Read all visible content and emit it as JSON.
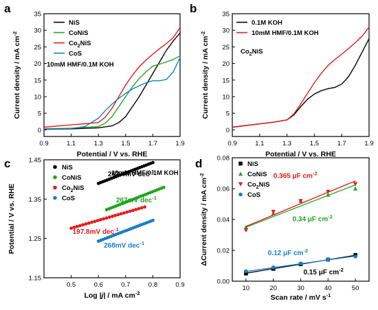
{
  "chart_data": [
    {
      "panel": "a",
      "type": "line",
      "xlabel": "Potential / V vs. RHE",
      "ylabel": "Current density / mA cm",
      "ylabel_sup": "-2",
      "xlim": [
        0.9,
        1.9
      ],
      "ylim": [
        -2,
        35
      ],
      "xticks": [
        "0.9",
        "1.1",
        "1.3",
        "1.5",
        "1.7",
        "1.9"
      ],
      "yticks": [
        "0",
        "5",
        "10",
        "15",
        "20",
        "25",
        "30",
        "35"
      ],
      "note": "10mM HMF/0.1M KOH",
      "legend_position": "top-left",
      "series": [
        {
          "name": "NiS",
          "color": "#000000",
          "x": [
            0.9,
            1.1,
            1.3,
            1.4,
            1.45,
            1.5,
            1.55,
            1.6,
            1.65,
            1.7,
            1.75,
            1.8,
            1.85,
            1.9
          ],
          "y": [
            0.2,
            0.3,
            0.6,
            1.2,
            2.2,
            4.0,
            7.0,
            10.0,
            13.5,
            17.0,
            20.5,
            24.0,
            26.8,
            29.2
          ]
        },
        {
          "name": "CoNiS",
          "color": "#1fa51f",
          "x": [
            0.9,
            1.1,
            1.3,
            1.35,
            1.4,
            1.45,
            1.5,
            1.55,
            1.6,
            1.65,
            1.7,
            1.75,
            1.8,
            1.85,
            1.9
          ],
          "y": [
            0.3,
            0.5,
            1.0,
            2.0,
            4.0,
            7.0,
            10.0,
            13.0,
            15.5,
            17.5,
            19.2,
            19.8,
            20.5,
            21.2,
            22.3
          ]
        },
        {
          "name": "Co2NiS",
          "label_main": "Co",
          "label_sub": "2",
          "label_tail": "NiS",
          "color": "#e8191b",
          "x": [
            0.9,
            1.1,
            1.3,
            1.35,
            1.4,
            1.45,
            1.5,
            1.55,
            1.6,
            1.65,
            1.7,
            1.75,
            1.8,
            1.85,
            1.9
          ],
          "y": [
            0.8,
            1.5,
            2.2,
            3.8,
            6.5,
            10.0,
            13.5,
            16.5,
            19.0,
            21.0,
            22.8,
            24.5,
            26.0,
            27.8,
            30.8
          ]
        },
        {
          "name": "CoS",
          "color": "#1a7cc9",
          "x": [
            0.9,
            1.1,
            1.2,
            1.3,
            1.35,
            1.4,
            1.45,
            1.5,
            1.55,
            1.6,
            1.65,
            1.7,
            1.75,
            1.8,
            1.85,
            1.9
          ],
          "y": [
            0.3,
            0.4,
            1.0,
            3.5,
            5.8,
            7.8,
            9.5,
            11.0,
            12.3,
            13.3,
            14.2,
            14.8,
            14.8,
            15.2,
            17.5,
            21.8
          ]
        }
      ]
    },
    {
      "panel": "b",
      "type": "line",
      "xlabel": "Potential / V vs. RHE",
      "ylabel": "Current density / mA cm",
      "ylabel_sup": "-2",
      "xlim": [
        0.9,
        1.9
      ],
      "ylim": [
        -2,
        35
      ],
      "xticks": [
        "0.9",
        "1.1",
        "1.3",
        "1.5",
        "1.7",
        "1.9"
      ],
      "yticks": [
        "0",
        "5",
        "10",
        "15",
        "20",
        "25",
        "30",
        "35"
      ],
      "note_main": "Co",
      "note_sub": "2",
      "note_tail": "NiS",
      "legend_position": "top-left",
      "series": [
        {
          "name": "0.1M KOH",
          "color": "#000000",
          "x": [
            0.9,
            1.0,
            1.1,
            1.2,
            1.3,
            1.35,
            1.4,
            1.45,
            1.5,
            1.55,
            1.6,
            1.65,
            1.7,
            1.75,
            1.8,
            1.85,
            1.9
          ],
          "y": [
            0.8,
            1.3,
            1.8,
            2.3,
            3.0,
            4.5,
            7.0,
            9.2,
            10.8,
            11.8,
            12.4,
            12.8,
            13.8,
            16.0,
            19.5,
            23.5,
            27.5
          ]
        },
        {
          "name": "10mM HMF/0.1M KOH",
          "color": "#e8191b",
          "x": [
            0.9,
            1.0,
            1.1,
            1.2,
            1.3,
            1.35,
            1.4,
            1.45,
            1.5,
            1.55,
            1.6,
            1.65,
            1.7,
            1.75,
            1.8,
            1.85,
            1.9
          ],
          "y": [
            0.8,
            1.3,
            1.8,
            2.3,
            3.0,
            4.8,
            7.8,
            11.0,
            14.2,
            17.0,
            19.4,
            21.2,
            22.8,
            24.5,
            26.3,
            28.3,
            31.0
          ]
        }
      ]
    },
    {
      "panel": "c",
      "type": "scatter",
      "xlabel": "Log |j| / mA cm",
      "xlabel_main": "Log ",
      "xlabel_j": "|j|",
      "xlabel_tail": " / mA cm",
      "xlabel_sup": "-2",
      "ylabel": "Potential / V vs. RHE",
      "xlim": [
        0.4,
        0.9
      ],
      "ylim": [
        1.15,
        1.45
      ],
      "xticks": [
        "0.5",
        "0.6",
        "0.7",
        "0.8",
        "0.9"
      ],
      "yticks": [
        "1.15",
        "1.25",
        "1.35",
        "1.45"
      ],
      "note": "10mM HMF/0.1M KOH",
      "legend_position": "top-left",
      "series": [
        {
          "name": "NiS",
          "color": "#000000",
          "x_start": 0.6,
          "x_end": 0.8,
          "y_start": 1.39,
          "y_end": 1.443,
          "slope_label": "263.4mV dec",
          "slope_sup": "-1"
        },
        {
          "name": "CoNiS",
          "color": "#1fa51f",
          "x_start": 0.63,
          "x_end": 0.84,
          "y_start": 1.323,
          "y_end": 1.38,
          "slope_label": "267mV dec",
          "slope_sup": "-1"
        },
        {
          "name": "Co2NiS",
          "label_main": "Co",
          "label_sub": "2",
          "label_tail": "NiS",
          "color": "#e8191b",
          "x_start": 0.5,
          "x_end": 0.77,
          "y_start": 1.276,
          "y_end": 1.33,
          "slope_label": "197.8mV dec",
          "slope_sup": "-1"
        },
        {
          "name": "CoS",
          "color": "#1a7cc9",
          "x_start": 0.6,
          "x_end": 0.8,
          "y_start": 1.243,
          "y_end": 1.296,
          "slope_label": "268mV dec",
          "slope_sup": "-1"
        }
      ]
    },
    {
      "panel": "d",
      "type": "scatter",
      "xlabel": "Scan rate / mV s",
      "xlabel_sup": "-1",
      "ylabel": "ΔCurrent density / mA cm",
      "ylabel_sup": "-2",
      "xlim": [
        5,
        55
      ],
      "ylim": [
        0,
        0.08
      ],
      "xticks": [
        "10",
        "20",
        "30",
        "40",
        "50"
      ],
      "yticks": [
        "0.00",
        "0.02",
        "0.04",
        "0.06",
        "0.08"
      ],
      "legend_position": "top-left",
      "series": [
        {
          "name": "NiS",
          "color": "#000000",
          "marker": "square",
          "x": [
            10,
            20,
            30,
            40,
            50
          ],
          "y": [
            0.005,
            0.008,
            0.011,
            0.014,
            0.017
          ],
          "fit": [
            [
              10,
              0.0052
            ],
            [
              50,
              0.0168
            ]
          ],
          "cdl_label": "0.15 μF cm",
          "cdl_sup": "-2"
        },
        {
          "name": "CoNiS",
          "color": "#1fa51f",
          "marker": "triangle-up",
          "x": [
            10,
            20,
            30,
            40,
            50
          ],
          "y": [
            0.035,
            0.044,
            0.052,
            0.056,
            0.06
          ],
          "fit": [
            [
              10,
              0.035
            ],
            [
              50,
              0.0624
            ]
          ],
          "cdl_label": "0.34 μF cm",
          "cdl_sup": "-2"
        },
        {
          "name": "Co2NiS",
          "label_main": "Co",
          "label_sub": "2",
          "label_tail": "NiS",
          "color": "#e8191b",
          "marker": "triangle-down",
          "x": [
            10,
            20,
            30,
            40,
            50
          ],
          "y": [
            0.033,
            0.045,
            0.052,
            0.058,
            0.063
          ],
          "fit": [
            [
              10,
              0.0355
            ],
            [
              50,
              0.065
            ]
          ],
          "cdl_label": "0.365 μF cm",
          "cdl_sup": "-2"
        },
        {
          "name": "CoS",
          "color": "#1a7cc9",
          "marker": "circle",
          "x": [
            10,
            20,
            30,
            40,
            50
          ],
          "y": [
            0.0065,
            0.009,
            0.0115,
            0.014,
            0.016
          ],
          "fit": [
            [
              10,
              0.0063
            ],
            [
              50,
              0.0163
            ]
          ],
          "cdl_label": "0.12 μF cm",
          "cdl_sup": "-2"
        }
      ]
    }
  ]
}
